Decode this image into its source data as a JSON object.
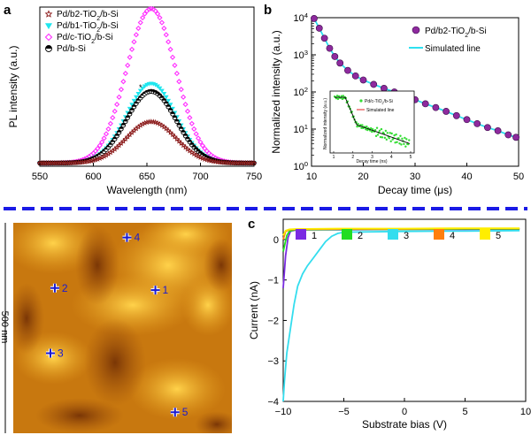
{
  "panels": {
    "a": {
      "letter": "a"
    },
    "b": {
      "letter": "b"
    },
    "c": {
      "letter": "c"
    }
  },
  "afm": {
    "scale_label": "500 nm",
    "markers": [
      {
        "label": "1",
        "x": 0.65,
        "y": 0.32
      },
      {
        "label": "2",
        "x": 0.19,
        "y": 0.31
      },
      {
        "label": "3",
        "x": 0.17,
        "y": 0.62
      },
      {
        "label": "4",
        "x": 0.52,
        "y": 0.07
      },
      {
        "label": "5",
        "x": 0.74,
        "y": 0.9
      }
    ]
  },
  "chart_data": [
    {
      "id": "a",
      "type": "scatter",
      "xlabel": "Wavelength (nm)",
      "ylabel": "PL intensity (a.u.)",
      "xlim": [
        550,
        750
      ],
      "xticks": [
        "550",
        "600",
        "650",
        "700",
        "750"
      ],
      "legend_position": "top-left",
      "series": [
        {
          "name": "Pd/b2-TiO2/b-Si",
          "label_main": "Pd/b2-TiO",
          "label_sub": "2",
          "label_tail": "/b-Si",
          "marker": "star",
          "color": "#8b1a1a",
          "peak": 0.26
        },
        {
          "name": "Pd/b1-TiO2/b-Si",
          "label_main": "Pd/b1-TiO",
          "label_sub": "2",
          "label_tail": "/b-Si",
          "marker": "triangle-down",
          "color": "#1ee6ee",
          "peak": 0.5
        },
        {
          "name": "Pd/c-TiO2/b-Si",
          "label_main": "Pd/c-TiO",
          "label_sub": "2",
          "label_tail": "/b-Si",
          "marker": "diamond",
          "color": "#ff2eff",
          "peak": 0.97
        },
        {
          "name": "Pd/b-Si",
          "label_main": "Pd/b-Si",
          "label_sub": "",
          "label_tail": "",
          "marker": "half-circle",
          "color": "#000000",
          "peak": 0.45
        }
      ],
      "peak_center": 654,
      "peak_width": 23,
      "baseline": 0.02
    },
    {
      "id": "b",
      "type": "scatter",
      "xlabel": "Decay time (μs)",
      "ylabel": "Normalized intensity (a.u.)",
      "xlim": [
        10,
        50
      ],
      "ylim": [
        1,
        10000
      ],
      "yscale": "log",
      "xticks": [
        "10",
        "20",
        "30",
        "40",
        "50"
      ],
      "yticks": [
        {
          "base": "10",
          "exp": "0"
        },
        {
          "base": "10",
          "exp": "1"
        },
        {
          "base": "10",
          "exp": "2"
        },
        {
          "base": "10",
          "exp": "3"
        },
        {
          "base": "10",
          "exp": "4"
        }
      ],
      "legend_position": "top-right",
      "series": [
        {
          "name": "Pd/b2-TiO2/b-Si",
          "label_main": "Pd/b2-TiO",
          "label_sub": "2",
          "label_tail": "/b-Si",
          "marker": "circle",
          "color": "#8e2a9e"
        },
        {
          "name": "Simulated line",
          "marker": "line",
          "color": "#2ee0f0"
        }
      ],
      "x": [
        10.5,
        11.5,
        12.5,
        13.5,
        14.5,
        15.5,
        17,
        18.5,
        20,
        22,
        24,
        26,
        28,
        30,
        32,
        34,
        36,
        38,
        40,
        42,
        44,
        46,
        48,
        49.5
      ],
      "y": [
        9500,
        5200,
        2800,
        1500,
        900,
        600,
        380,
        270,
        210,
        160,
        125,
        100,
        80,
        62,
        48,
        38,
        30,
        23,
        18,
        14,
        11,
        9,
        7,
        6
      ],
      "inset": {
        "xlabel": "Decay time (ns)",
        "ylabel": "Normalized intensity (a.u.)",
        "xticks": [
          "1",
          "2",
          "3",
          "4",
          "5"
        ],
        "series": [
          {
            "name": "Pd/c-TiO2/b-Si",
            "label_main": "Pd/c-TiO",
            "label_sub": "2",
            "label_tail": "/b-Si",
            "color": "#33dd33"
          },
          {
            "name": "Simulated line",
            "color": "#e02020"
          }
        ]
      }
    },
    {
      "id": "c",
      "type": "line",
      "xlabel": "Substrate bias (V)",
      "ylabel": "Current (nA)",
      "xlim": [
        -10,
        10
      ],
      "ylim": [
        -4,
        0.5
      ],
      "xticks": [
        "−10",
        "−5",
        "0",
        "5",
        "10"
      ],
      "yticks": [
        "−4",
        "−3",
        "−2",
        "−1",
        "0"
      ],
      "legend_position": "top",
      "series": [
        {
          "name": "1",
          "color": "#7a2be2",
          "x": [
            -10,
            -9.8,
            -9.6,
            -9.4,
            -9.2,
            -9,
            -8,
            -5,
            0,
            5,
            9.5
          ],
          "y": [
            -1.2,
            -0.4,
            0.05,
            0.2,
            0.22,
            0.23,
            0.24,
            0.24,
            0.25,
            0.25,
            0.26
          ]
        },
        {
          "name": "2",
          "color": "#22dd22",
          "x": [
            -10,
            -9.7,
            -9.5,
            -9.2,
            -9,
            -5,
            0,
            5,
            9.5
          ],
          "y": [
            -0.3,
            0.1,
            0.2,
            0.23,
            0.24,
            0.25,
            0.25,
            0.26,
            0.26
          ]
        },
        {
          "name": "3",
          "color": "#33ddee",
          "x": [
            -10,
            -9.9,
            -9.7,
            -9.4,
            -9.1,
            -8.8,
            -8.4,
            -8,
            -7.5,
            -7,
            -6.5,
            -6,
            -5.5,
            -5,
            0,
            5,
            9.5
          ],
          "y": [
            -4.0,
            -3.5,
            -2.8,
            -2.2,
            -1.6,
            -1.15,
            -0.85,
            -0.65,
            -0.45,
            -0.25,
            -0.05,
            0.08,
            0.15,
            0.18,
            0.2,
            0.21,
            0.22
          ]
        },
        {
          "name": "4",
          "color": "#ff7f0e",
          "x": [
            -10,
            -9.8,
            -9.5,
            -9,
            -5,
            0,
            5,
            9.5
          ],
          "y": [
            0.0,
            0.2,
            0.24,
            0.25,
            0.26,
            0.26,
            0.27,
            0.27
          ]
        },
        {
          "name": "5",
          "color": "#ffee00",
          "x": [
            -10,
            -9.8,
            -9.5,
            -9,
            -5,
            0,
            5,
            9.5
          ],
          "y": [
            0.1,
            0.22,
            0.25,
            0.26,
            0.27,
            0.27,
            0.28,
            0.28
          ]
        }
      ]
    }
  ]
}
